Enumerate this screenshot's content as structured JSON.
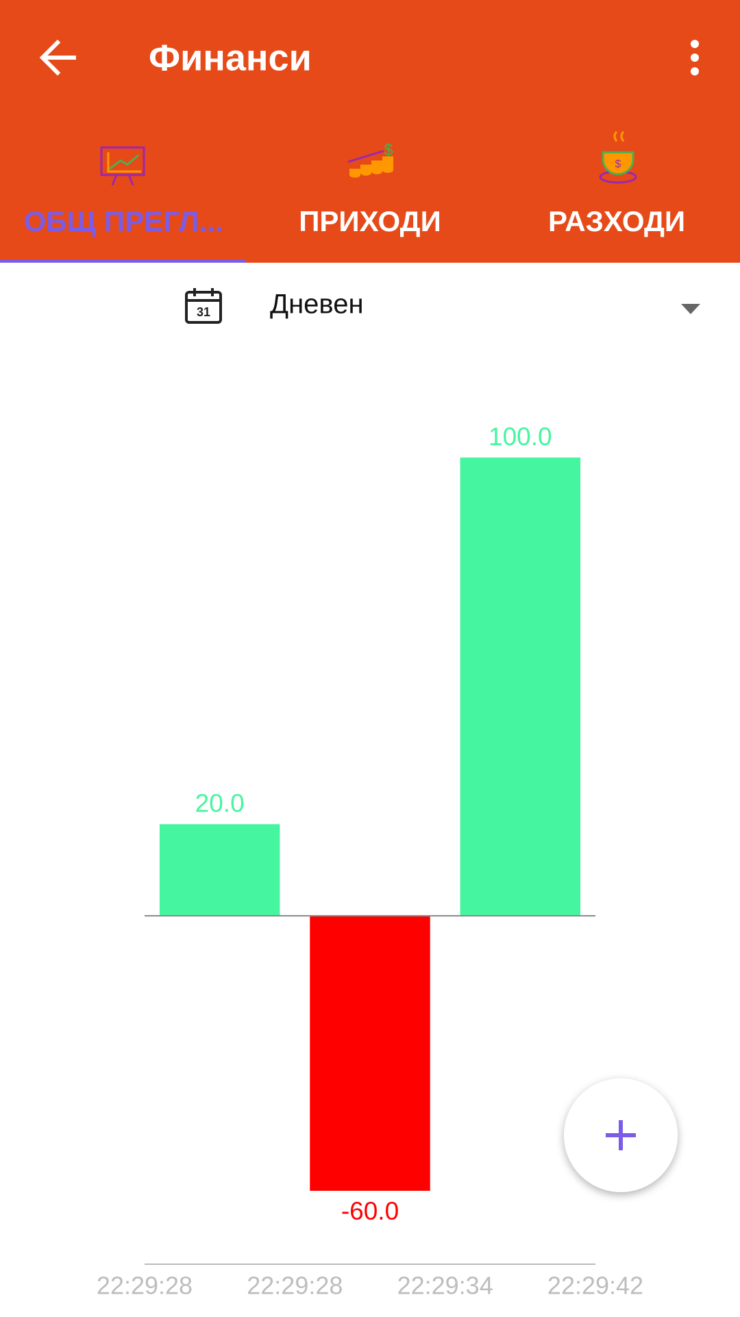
{
  "header": {
    "title": "Финанси"
  },
  "tabs": [
    "ОБЩ ПРЕГЛ...",
    "ПРИХОДИ",
    "РАЗХОДИ"
  ],
  "dropdown": {
    "label": "Дневен"
  },
  "chart_data": {
    "type": "bar",
    "values": [
      20,
      -60,
      100
    ],
    "value_labels": [
      "20.0",
      "-60.0",
      "100.0"
    ],
    "colors": [
      "#46f5a0",
      "#ff0000",
      "#46f5a0"
    ],
    "xtick_labels": [
      "22:29:28",
      "22:29:28",
      "22:29:34",
      "22:29:42"
    ],
    "ylim": [
      -60,
      100
    ]
  }
}
